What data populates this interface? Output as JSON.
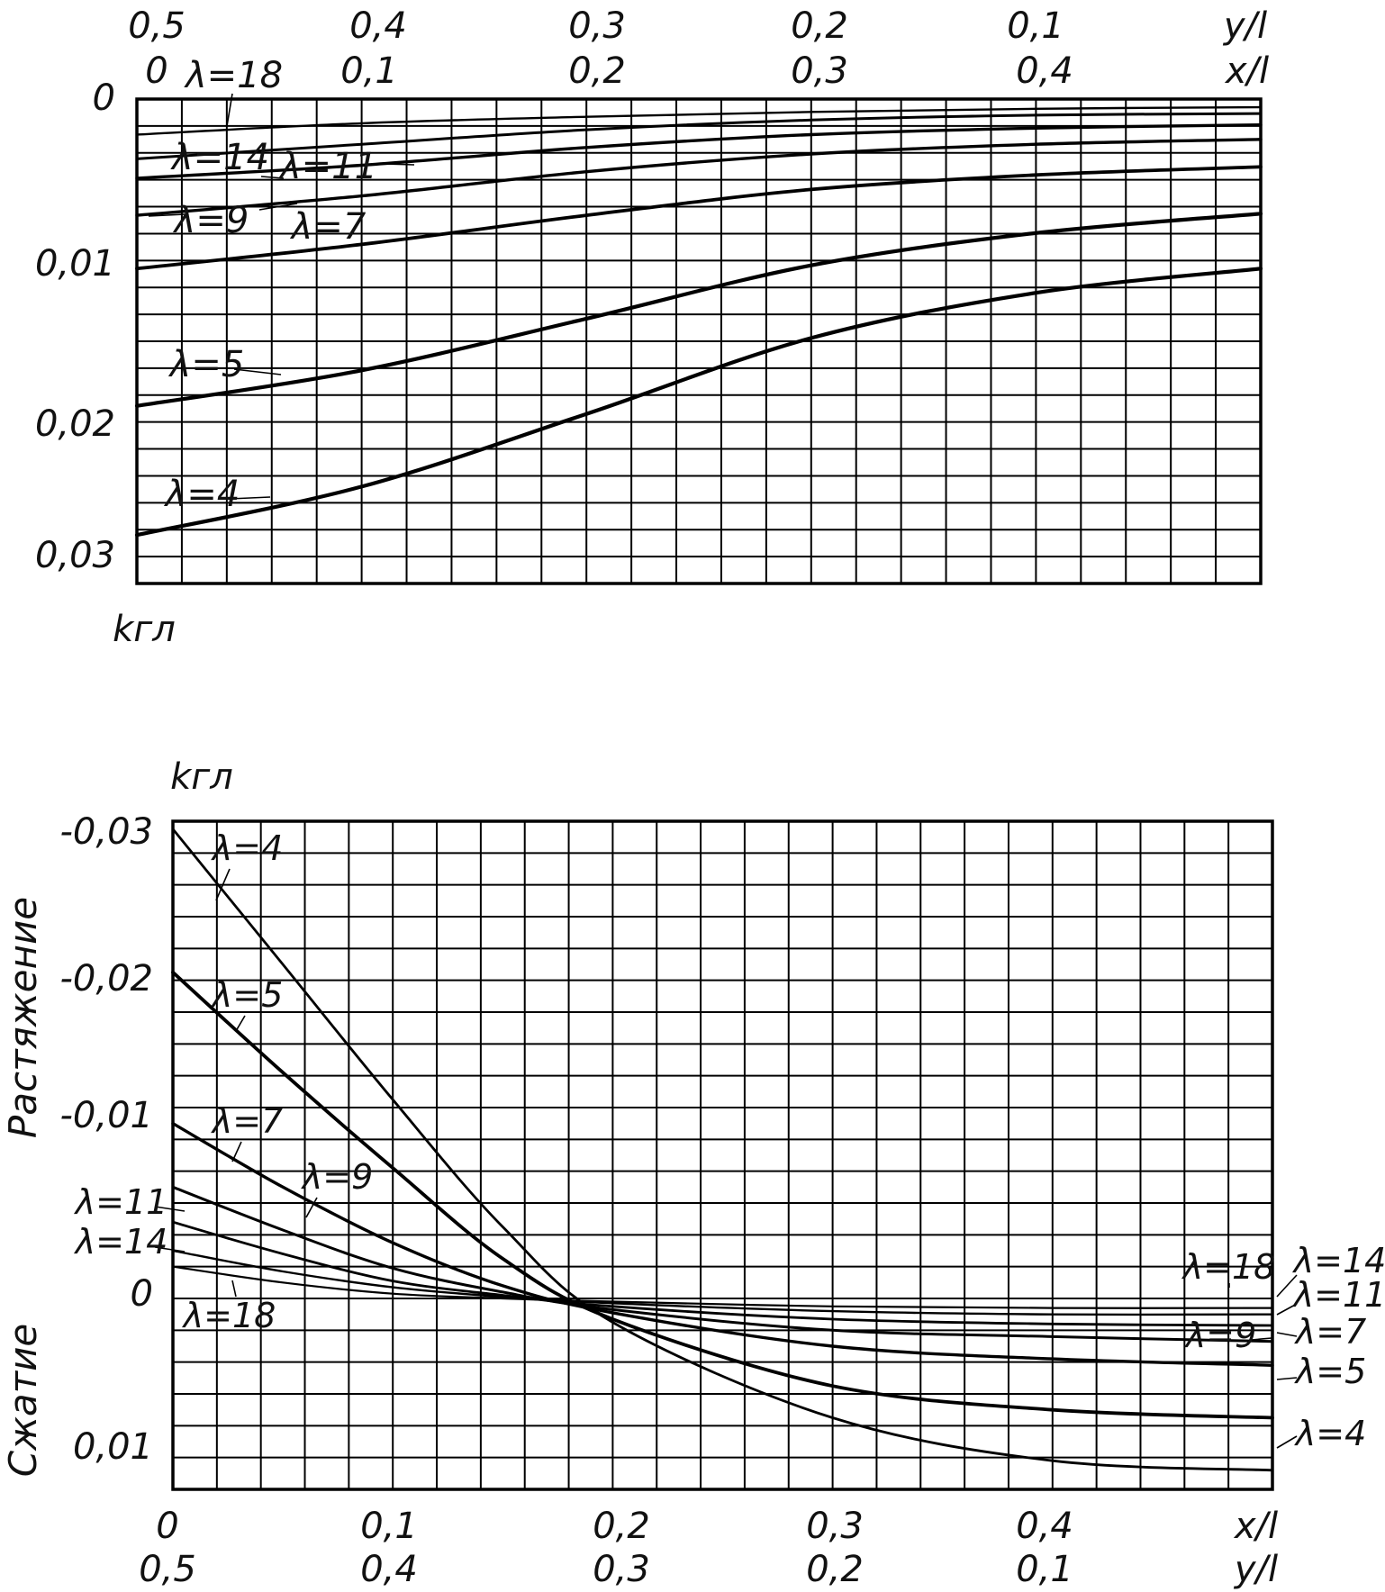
{
  "chart_data": [
    {
      "type": "line",
      "title": "",
      "x_top_label": "y/l",
      "x_bottom_label": "x/l",
      "y_label": "k_гл",
      "y_unit_label": "kгл",
      "x_top_ticks": [
        "0,5",
        "0,4",
        "0,3",
        "0,2",
        "0,1",
        "y/l"
      ],
      "x_second_ticks": [
        "0",
        "0,1",
        "0,2",
        "0,3",
        "0,4",
        "x/l"
      ],
      "y_ticks": [
        "0",
        "0,01",
        "0,02",
        "0,03"
      ],
      "xlim": [
        0,
        0.5
      ],
      "ylim": [
        0,
        0.03
      ],
      "y_inverted": true,
      "grid": true,
      "series": [
        {
          "name": "λ=18",
          "x": [
            0,
            0.1,
            0.2,
            0.3,
            0.4,
            0.5
          ],
          "y": [
            0.0022,
            0.0015,
            0.0011,
            0.0008,
            0.0006,
            0.0005
          ]
        },
        {
          "name": "λ=14",
          "x": [
            0,
            0.1,
            0.2,
            0.3,
            0.4,
            0.5
          ],
          "y": [
            0.0037,
            0.0028,
            0.0019,
            0.0013,
            0.001,
            0.0009
          ]
        },
        {
          "name": "λ=11",
          "x": [
            0,
            0.1,
            0.2,
            0.3,
            0.4,
            0.5
          ],
          "y": [
            0.0049,
            0.0041,
            0.003,
            0.0022,
            0.0018,
            0.0016
          ]
        },
        {
          "name": "λ=9",
          "x": [
            0,
            0.1,
            0.2,
            0.3,
            0.4,
            0.5
          ],
          "y": [
            0.0072,
            0.006,
            0.0045,
            0.0034,
            0.0028,
            0.0025
          ]
        },
        {
          "name": "λ=7",
          "x": [
            0,
            0.1,
            0.2,
            0.3,
            0.4,
            0.5
          ],
          "y": [
            0.0105,
            0.009,
            0.0072,
            0.0056,
            0.0047,
            0.0042
          ]
        },
        {
          "name": "λ=5",
          "x": [
            0,
            0.1,
            0.2,
            0.3,
            0.4,
            0.5
          ],
          "y": [
            0.019,
            0.0168,
            0.0136,
            0.0103,
            0.0083,
            0.0071
          ]
        },
        {
          "name": "λ=4",
          "x": [
            0,
            0.1,
            0.2,
            0.3,
            0.4,
            0.5
          ],
          "y": [
            0.027,
            0.024,
            0.0195,
            0.0148,
            0.012,
            0.0105
          ]
        }
      ]
    },
    {
      "type": "line",
      "title": "",
      "x_bottom_label": "x/l",
      "x_bottom2_label": "y/l",
      "y_label": "k_гл",
      "y_unit_label": "kгл",
      "y_upper_side_label": "Растяжение",
      "y_lower_side_label": "Сжатие",
      "x_ticks": [
        "0",
        "0,1",
        "0,2",
        "0,3",
        "0,4",
        "x/l"
      ],
      "x_second_ticks": [
        "0,5",
        "0,4",
        "0,3",
        "0,2",
        "0,1",
        "y/l"
      ],
      "y_ticks": [
        "-0,03",
        "-0,02",
        "-0,01",
        "0",
        "0,01"
      ],
      "xlim": [
        0,
        0.5
      ],
      "ylim": [
        -0.03,
        0.012
      ],
      "y_inverted": true,
      "grid": true,
      "series": [
        {
          "name": "λ=4",
          "x": [
            0,
            0.05,
            0.1,
            0.15,
            0.2,
            0.3,
            0.4,
            0.5
          ],
          "y": [
            -0.0295,
            -0.021,
            -0.0125,
            -0.0045,
            0.0015,
            0.0075,
            0.0102,
            0.0108
          ]
        },
        {
          "name": "λ=5",
          "x": [
            0,
            0.05,
            0.1,
            0.15,
            0.2,
            0.3,
            0.4,
            0.5
          ],
          "y": [
            -0.0205,
            -0.0142,
            -0.0082,
            -0.0025,
            0.0013,
            0.0055,
            0.007,
            0.0075
          ]
        },
        {
          "name": "λ=7",
          "x": [
            0,
            0.05,
            0.1,
            0.15,
            0.2,
            0.3,
            0.4,
            0.5
          ],
          "y": [
            -0.011,
            -0.007,
            -0.0035,
            -0.0008,
            0.0009,
            0.003,
            0.0038,
            0.0042
          ]
        },
        {
          "name": "λ=9",
          "x": [
            0,
            0.05,
            0.1,
            0.15,
            0.2,
            0.3,
            0.4,
            0.5
          ],
          "y": [
            -0.007,
            -0.0043,
            -0.0019,
            -0.0004,
            0.0007,
            0.002,
            0.0024,
            0.0027
          ]
        },
        {
          "name": "λ=11",
          "x": [
            0,
            0.05,
            0.1,
            0.15,
            0.2,
            0.3,
            0.4,
            0.5
          ],
          "y": [
            -0.0048,
            -0.0028,
            -0.0011,
            -0.0002,
            0.0005,
            0.0013,
            0.0016,
            0.0017
          ]
        },
        {
          "name": "λ=14",
          "x": [
            0,
            0.05,
            0.1,
            0.15,
            0.2,
            0.3,
            0.4,
            0.5
          ],
          "y": [
            -0.003,
            -0.0017,
            -0.0007,
            -0.0001,
            0.0003,
            0.0008,
            0.001,
            0.001
          ]
        },
        {
          "name": "λ=18",
          "x": [
            0,
            0.05,
            0.1,
            0.15,
            0.2,
            0.3,
            0.4,
            0.5
          ],
          "y": [
            -0.002,
            -0.001,
            -0.0003,
            0.0,
            0.0002,
            0.0005,
            0.0006,
            0.0006
          ]
        }
      ]
    }
  ]
}
